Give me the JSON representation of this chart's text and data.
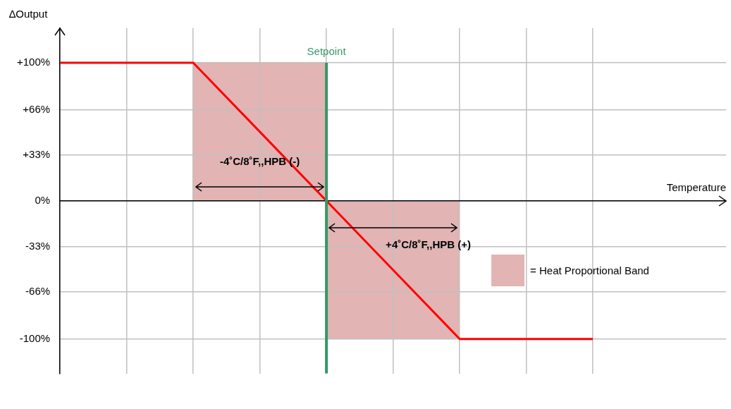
{
  "chart_data": {
    "type": "line",
    "ylabel": "∆Output",
    "xlabel": "Temperature",
    "categories": [
      null,
      null,
      null,
      null,
      null,
      null,
      null,
      null,
      null,
      null,
      null
    ],
    "ylim": [
      -125,
      125
    ],
    "yticks": [
      {
        "value": 100,
        "label": "+100%"
      },
      {
        "value": 66,
        "label": "+66%"
      },
      {
        "value": 33,
        "label": "+33%"
      },
      {
        "value": 0,
        "label": "0%"
      },
      {
        "value": -33,
        "label": "-33%"
      },
      {
        "value": -66,
        "label": "-66%"
      },
      {
        "value": -100,
        "label": "-100%"
      }
    ],
    "grid": true,
    "series": [
      {
        "color": "#ff0000",
        "values": [
          100,
          100,
          100,
          50,
          0,
          -50,
          -100,
          -100,
          -100,
          null,
          null
        ]
      }
    ],
    "ref_lines": [
      {
        "axis": "x",
        "label": "Setpoint",
        "color": "#339966"
      }
    ],
    "annotations": [
      "-4˚C/8˚F,,HPB (-)",
      "+4˚C/8˚F,,HPB (+)",
      "= Heat Proportional Band"
    ]
  }
}
